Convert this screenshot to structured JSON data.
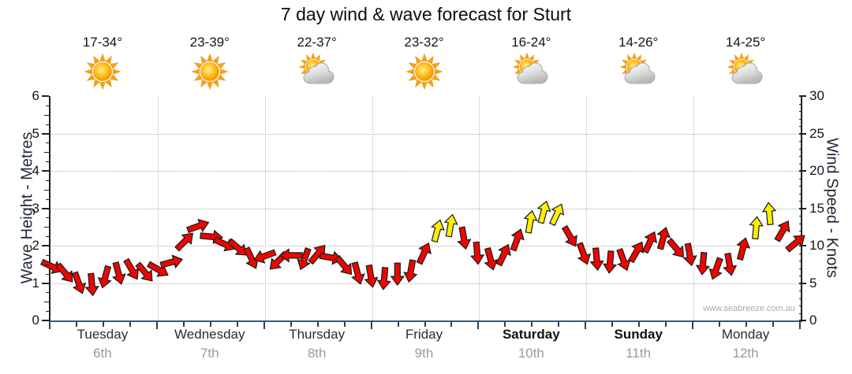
{
  "title": "7 day wind & wave forecast for Sturt",
  "watermark": "www.seabreeze.com.au",
  "colors": {
    "arrow_red": "#ee0500",
    "arrow_yellow": "#fbf000",
    "arrow_outline": "#1a1a1a",
    "x_axis_line": "#2b5c8c",
    "side_axis_line": "#1f1f1f",
    "grid": "#a9a9a9",
    "tick_text": "#10151c",
    "axis_title_text": "#1d2836",
    "day_name_text": "#2b2b2b",
    "date_text": "#9a9a9a",
    "watermark_text": "#a9a9a9",
    "sun_core": "#ffc21f",
    "sun_ray": "#f2a121",
    "cloud_fill": "#d9d9d9"
  },
  "days": [
    {
      "name": "Tuesday",
      "date": "6th",
      "temp": "17-34°",
      "icon": "sun",
      "bold": false
    },
    {
      "name": "Wednesday",
      "date": "7th",
      "temp": "23-39°",
      "icon": "sun",
      "bold": false
    },
    {
      "name": "Thursday",
      "date": "8th",
      "temp": "22-37°",
      "icon": "sun-cloud",
      "bold": false
    },
    {
      "name": "Friday",
      "date": "9th",
      "temp": "23-32°",
      "icon": "sun",
      "bold": false
    },
    {
      "name": "Saturday",
      "date": "10th",
      "temp": "16-24°",
      "icon": "sun-cloud",
      "bold": true
    },
    {
      "name": "Sunday",
      "date": "11th",
      "temp": "14-26°",
      "icon": "sun-cloud",
      "bold": true
    },
    {
      "name": "Monday",
      "date": "12th",
      "temp": "14-25°",
      "icon": "sun-cloud",
      "bold": false
    }
  ],
  "left_axis": {
    "title": "Wave Height - Metres",
    "min": 0,
    "max": 6,
    "major_ticks": [
      0,
      1,
      2,
      3,
      4,
      5,
      6
    ],
    "minor_step": 0.25
  },
  "right_axis": {
    "title": "Wind Speed - Knots",
    "min": 0,
    "max": 30,
    "major_ticks": [
      0,
      5,
      10,
      15,
      20,
      25,
      30
    ],
    "minor_step": 1
  },
  "chart_data": {
    "type": "scatter",
    "subtype": "wind-direction-arrows",
    "title": "7 day wind & wave forecast for Sturt",
    "categories": [
      "Tuesday 6th",
      "Wednesday 7th",
      "Thursday 8th",
      "Friday 9th",
      "Saturday 10th",
      "Sunday 11th",
      "Monday 12th"
    ],
    "x_description": "3-hourly steps across 7 days, left to right",
    "y_axis_left": {
      "label": "Wave Height - Metres",
      "range": [
        0,
        6
      ]
    },
    "y_axis_right": {
      "label": "Wind Speed - Knots",
      "range": [
        0,
        30
      ]
    },
    "grid": true,
    "legend": "none",
    "arrow_color_meaning": {
      "r": "red = lighter wind",
      "y": "yellow = stronger wind (~12+ knots)"
    },
    "arrows_format": "[wind_speed_knots, direction_deg_0_is_up, color_flag]",
    "arrows": [
      [
        7.2,
        115,
        "r"
      ],
      [
        6.3,
        140,
        "r"
      ],
      [
        5.0,
        160,
        "r"
      ],
      [
        4.8,
        175,
        "r"
      ],
      [
        5.8,
        195,
        "r"
      ],
      [
        6.3,
        165,
        "r"
      ],
      [
        6.8,
        150,
        "r"
      ],
      [
        6.4,
        140,
        "r"
      ],
      [
        6.8,
        120,
        "r"
      ],
      [
        7.8,
        75,
        "r"
      ],
      [
        10.6,
        45,
        "r"
      ],
      [
        12.6,
        70,
        "r"
      ],
      [
        11.2,
        95,
        "r"
      ],
      [
        10.2,
        115,
        "r"
      ],
      [
        9.7,
        130,
        "r"
      ],
      [
        8.3,
        155,
        "r"
      ],
      [
        8.6,
        250,
        "r"
      ],
      [
        7.9,
        225,
        "r"
      ],
      [
        8.7,
        270,
        "r"
      ],
      [
        8.2,
        200,
        "r"
      ],
      [
        8.9,
        40,
        "r"
      ],
      [
        8.4,
        100,
        "r"
      ],
      [
        7.3,
        140,
        "r"
      ],
      [
        6.3,
        165,
        "r"
      ],
      [
        5.9,
        170,
        "r"
      ],
      [
        5.6,
        185,
        "r"
      ],
      [
        6.2,
        180,
        "r"
      ],
      [
        6.6,
        190,
        "r"
      ],
      [
        9.0,
        25,
        "r"
      ],
      [
        12.0,
        15,
        "y"
      ],
      [
        12.7,
        10,
        "y"
      ],
      [
        11.0,
        170,
        "r"
      ],
      [
        9.0,
        175,
        "r"
      ],
      [
        8.2,
        165,
        "r"
      ],
      [
        8.8,
        25,
        "r"
      ],
      [
        10.8,
        20,
        "r"
      ],
      [
        13.2,
        10,
        "y"
      ],
      [
        14.5,
        15,
        "y"
      ],
      [
        14.2,
        25,
        "y"
      ],
      [
        11.2,
        150,
        "r"
      ],
      [
        8.9,
        160,
        "r"
      ],
      [
        8.2,
        175,
        "r"
      ],
      [
        7.8,
        185,
        "r"
      ],
      [
        8.1,
        160,
        "r"
      ],
      [
        9.2,
        30,
        "r"
      ],
      [
        10.5,
        25,
        "r"
      ],
      [
        11.0,
        15,
        "r"
      ],
      [
        9.6,
        140,
        "r"
      ],
      [
        8.8,
        170,
        "r"
      ],
      [
        7.6,
        185,
        "r"
      ],
      [
        6.9,
        200,
        "r"
      ],
      [
        7.5,
        170,
        "r"
      ],
      [
        9.6,
        15,
        "r"
      ],
      [
        12.4,
        5,
        "y"
      ],
      [
        14.3,
        355,
        "y"
      ],
      [
        12.0,
        30,
        "r"
      ],
      [
        10.4,
        50,
        "r"
      ]
    ]
  }
}
